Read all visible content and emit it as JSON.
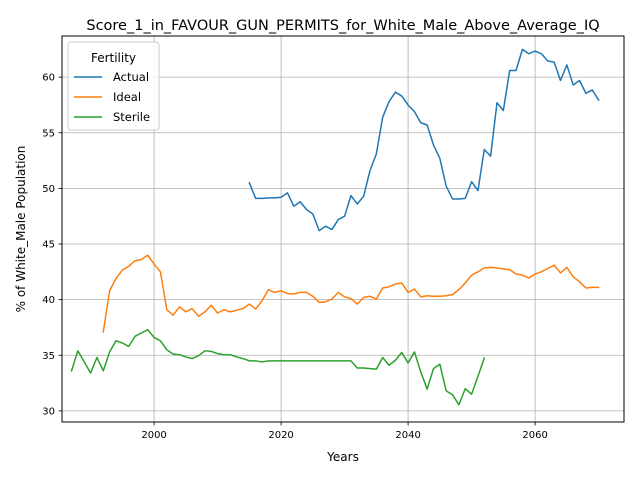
{
  "chart_data": {
    "type": "line",
    "title": "Score_1_in_FAVOUR_GUN_PERMITS_for_White_Male_Above_Average_IQ",
    "xlabel": "Years",
    "ylabel": "% of White_Male Population",
    "xlim": [
      1985.5,
      2074.0
    ],
    "ylim": [
      29.0,
      63.7
    ],
    "xticks": [
      2000,
      2020,
      2040,
      2060
    ],
    "yticks": [
      30,
      35,
      40,
      45,
      50,
      55,
      60
    ],
    "grid": true,
    "legend": {
      "title": "Fertility",
      "placement": "top-left"
    },
    "series": [
      {
        "name": "Actual",
        "color": "#1f77b4",
        "points": [
          [
            2015,
            50.5
          ],
          [
            2016,
            49.1
          ],
          [
            2017,
            49.1
          ],
          [
            2018,
            49.15
          ],
          [
            2019,
            49.15
          ],
          [
            2020,
            49.2
          ],
          [
            2021,
            49.6
          ],
          [
            2022,
            48.4
          ],
          [
            2023,
            48.8
          ],
          [
            2024,
            48.1
          ],
          [
            2025,
            47.7
          ],
          [
            2026,
            46.2
          ],
          [
            2027,
            46.6
          ],
          [
            2028,
            46.3
          ],
          [
            2029,
            47.2
          ],
          [
            2030,
            47.5
          ],
          [
            2031,
            49.35
          ],
          [
            2032,
            48.6
          ],
          [
            2033,
            49.3
          ],
          [
            2034,
            51.6
          ],
          [
            2035,
            53.1
          ],
          [
            2036,
            56.4
          ],
          [
            2037,
            57.8
          ],
          [
            2038,
            58.65
          ],
          [
            2039,
            58.3
          ],
          [
            2040,
            57.5
          ],
          [
            2041,
            56.9
          ],
          [
            2042,
            55.9
          ],
          [
            2043,
            55.7
          ],
          [
            2044,
            53.9
          ],
          [
            2045,
            52.7
          ],
          [
            2046,
            50.2
          ],
          [
            2047,
            49.05
          ],
          [
            2048,
            49.05
          ],
          [
            2049,
            49.1
          ],
          [
            2050,
            50.6
          ],
          [
            2051,
            49.8
          ],
          [
            2052,
            53.5
          ],
          [
            2053,
            52.9
          ],
          [
            2054,
            57.7
          ],
          [
            2055,
            57.0
          ],
          [
            2056,
            60.6
          ],
          [
            2057,
            60.6
          ],
          [
            2058,
            62.5
          ],
          [
            2059,
            62.1
          ],
          [
            2060,
            62.35
          ],
          [
            2061,
            62.1
          ],
          [
            2062,
            61.45
          ],
          [
            2063,
            61.35
          ],
          [
            2064,
            59.7
          ],
          [
            2065,
            61.1
          ],
          [
            2066,
            59.3
          ],
          [
            2067,
            59.7
          ],
          [
            2068,
            58.55
          ],
          [
            2069,
            58.85
          ],
          [
            2070,
            57.95
          ]
        ]
      },
      {
        "name": "Ideal",
        "color": "#ff7f0e",
        "points": [
          [
            1992,
            37.1
          ],
          [
            1993,
            40.8
          ],
          [
            1994,
            41.9
          ],
          [
            1995,
            42.65
          ],
          [
            1996,
            43.0
          ],
          [
            1997,
            43.5
          ],
          [
            1998,
            43.6
          ],
          [
            1999,
            44.0
          ],
          [
            2000,
            43.2
          ],
          [
            2001,
            42.5
          ],
          [
            2002,
            39.1
          ],
          [
            2003,
            38.6
          ],
          [
            2004,
            39.35
          ],
          [
            2005,
            38.9
          ],
          [
            2006,
            39.2
          ],
          [
            2007,
            38.5
          ],
          [
            2008,
            38.9
          ],
          [
            2009,
            39.5
          ],
          [
            2010,
            38.8
          ],
          [
            2011,
            39.1
          ],
          [
            2012,
            38.9
          ],
          [
            2013,
            39.05
          ],
          [
            2014,
            39.2
          ],
          [
            2015,
            39.6
          ],
          [
            2016,
            39.15
          ],
          [
            2017,
            39.9
          ],
          [
            2018,
            40.9
          ],
          [
            2019,
            40.65
          ],
          [
            2020,
            40.8
          ],
          [
            2021,
            40.55
          ],
          [
            2022,
            40.5
          ],
          [
            2023,
            40.65
          ],
          [
            2024,
            40.65
          ],
          [
            2025,
            40.3
          ],
          [
            2026,
            39.75
          ],
          [
            2027,
            39.8
          ],
          [
            2028,
            40.05
          ],
          [
            2029,
            40.65
          ],
          [
            2030,
            40.25
          ],
          [
            2031,
            40.1
          ],
          [
            2032,
            39.6
          ],
          [
            2033,
            40.2
          ],
          [
            2034,
            40.3
          ],
          [
            2035,
            40.05
          ],
          [
            2036,
            41.05
          ],
          [
            2037,
            41.15
          ],
          [
            2038,
            41.4
          ],
          [
            2039,
            41.5
          ],
          [
            2040,
            40.65
          ],
          [
            2041,
            40.95
          ],
          [
            2042,
            40.25
          ],
          [
            2043,
            40.35
          ],
          [
            2044,
            40.3
          ],
          [
            2045,
            40.3
          ],
          [
            2046,
            40.35
          ],
          [
            2047,
            40.45
          ],
          [
            2048,
            40.9
          ],
          [
            2049,
            41.5
          ],
          [
            2050,
            42.2
          ],
          [
            2051,
            42.5
          ],
          [
            2052,
            42.85
          ],
          [
            2053,
            42.9
          ],
          [
            2054,
            42.85
          ],
          [
            2055,
            42.75
          ],
          [
            2056,
            42.7
          ],
          [
            2057,
            42.3
          ],
          [
            2058,
            42.2
          ],
          [
            2059,
            41.95
          ],
          [
            2060,
            42.3
          ],
          [
            2061,
            42.5
          ],
          [
            2062,
            42.8
          ],
          [
            2063,
            43.1
          ],
          [
            2064,
            42.4
          ],
          [
            2065,
            42.9
          ],
          [
            2066,
            42.05
          ],
          [
            2067,
            41.6
          ],
          [
            2068,
            41.05
          ],
          [
            2069,
            41.1
          ],
          [
            2070,
            41.1
          ]
        ]
      },
      {
        "name": "Sterile",
        "color": "#2ca02c",
        "points": [
          [
            1987,
            33.6
          ],
          [
            1988,
            35.4
          ],
          [
            1989,
            34.4
          ],
          [
            1990,
            33.4
          ],
          [
            1991,
            34.8
          ],
          [
            1992,
            33.6
          ],
          [
            1993,
            35.3
          ],
          [
            1994,
            36.3
          ],
          [
            1995,
            36.1
          ],
          [
            1996,
            35.8
          ],
          [
            1997,
            36.7
          ],
          [
            1998,
            37.0
          ],
          [
            1999,
            37.3
          ],
          [
            2000,
            36.6
          ],
          [
            2001,
            36.3
          ],
          [
            2002,
            35.5
          ],
          [
            2003,
            35.1
          ],
          [
            2004,
            35.05
          ],
          [
            2005,
            34.85
          ],
          [
            2006,
            34.7
          ],
          [
            2007,
            34.95
          ],
          [
            2008,
            35.4
          ],
          [
            2009,
            35.35
          ],
          [
            2010,
            35.15
          ],
          [
            2011,
            35.05
          ],
          [
            2012,
            35.05
          ],
          [
            2013,
            34.85
          ],
          [
            2014,
            34.7
          ],
          [
            2015,
            34.5
          ],
          [
            2016,
            34.5
          ],
          [
            2017,
            34.4
          ],
          [
            2018,
            34.5
          ],
          [
            2019,
            34.5
          ],
          [
            2020,
            34.5
          ],
          [
            2021,
            34.5
          ],
          [
            2022,
            34.5
          ],
          [
            2023,
            34.5
          ],
          [
            2024,
            34.5
          ],
          [
            2025,
            34.5
          ],
          [
            2026,
            34.5
          ],
          [
            2027,
            34.5
          ],
          [
            2028,
            34.5
          ],
          [
            2029,
            34.5
          ],
          [
            2030,
            34.5
          ],
          [
            2031,
            34.5
          ],
          [
            2032,
            33.85
          ],
          [
            2033,
            33.85
          ],
          [
            2034,
            33.8
          ],
          [
            2035,
            33.75
          ],
          [
            2036,
            34.8
          ],
          [
            2037,
            34.1
          ],
          [
            2038,
            34.55
          ],
          [
            2039,
            35.25
          ],
          [
            2040,
            34.3
          ],
          [
            2041,
            35.3
          ],
          [
            2042,
            33.5
          ],
          [
            2043,
            31.95
          ],
          [
            2044,
            33.8
          ],
          [
            2045,
            34.2
          ],
          [
            2046,
            31.8
          ],
          [
            2047,
            31.45
          ],
          [
            2048,
            30.55
          ],
          [
            2049,
            32.0
          ],
          [
            2050,
            31.5
          ],
          [
            2051,
            33.1
          ],
          [
            2052,
            34.75
          ]
        ]
      }
    ]
  }
}
